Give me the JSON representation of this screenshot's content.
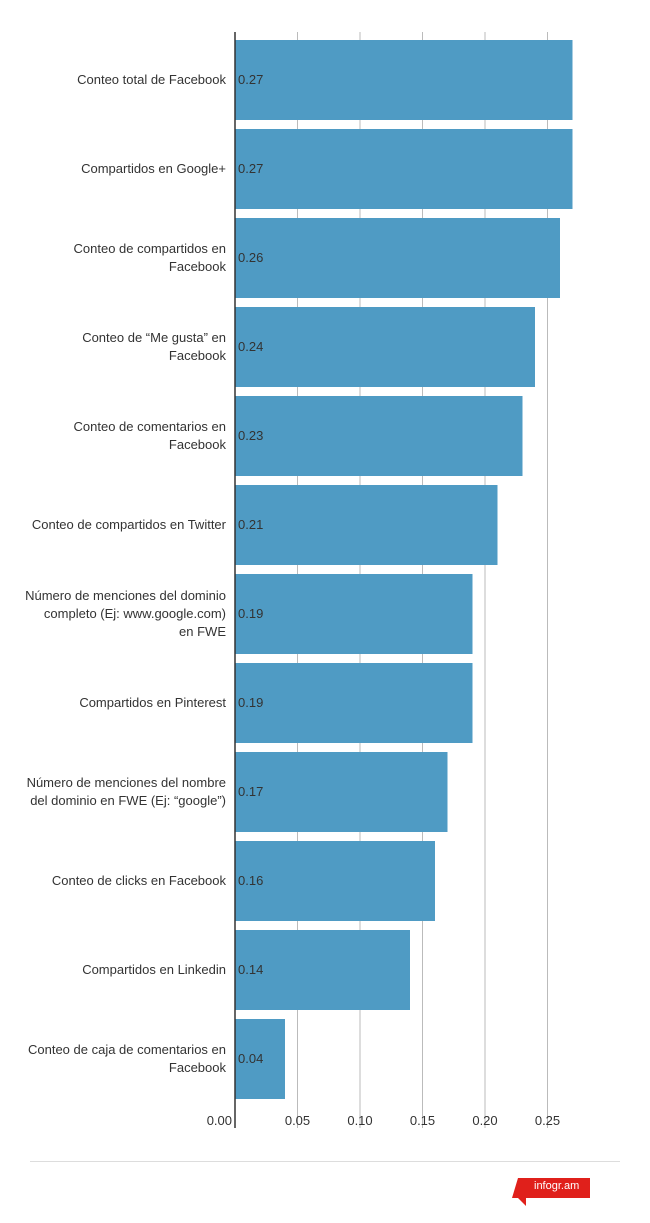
{
  "chart_data": {
    "type": "bar",
    "orientation": "horizontal",
    "categories": [
      "Conteo total de Facebook",
      "Compartidos en Google+",
      "Conteo de compartidos en Facebook",
      "Conteo de “Me gusta” en Facebook",
      "Conteo de comentarios en Facebook",
      "Conteo de compartidos en Twitter",
      "Número de menciones del dominio completo (Ej: www.google.com) en FWE",
      "Compartidos en Pinterest",
      "Número de menciones del nombre del dominio en FWE (Ej: “google”)",
      "Conteo de clicks en Facebook",
      "Compartidos en Linkedin",
      "Conteo de caja de comentarios en Facebook"
    ],
    "category_lines": [
      [
        "Conteo total de Facebook"
      ],
      [
        "Compartidos en Google+"
      ],
      [
        "Conteo de compartidos en",
        "Facebook"
      ],
      [
        "Conteo de “Me gusta” en",
        "Facebook"
      ],
      [
        "Conteo de comentarios en",
        "Facebook"
      ],
      [
        "Conteo de compartidos en Twitter"
      ],
      [
        "Número de menciones del dominio",
        "completo (Ej: www.google.com)",
        "en FWE"
      ],
      [
        "Compartidos en Pinterest"
      ],
      [
        "Número de menciones del nombre",
        "del dominio en FWE (Ej: “google”)"
      ],
      [
        "Conteo de clicks en Facebook"
      ],
      [
        "Compartidos en Linkedin"
      ],
      [
        "Conteo de caja de comentarios en",
        "Facebook"
      ]
    ],
    "values": [
      0.27,
      0.27,
      0.26,
      0.24,
      0.23,
      0.21,
      0.19,
      0.19,
      0.17,
      0.16,
      0.14,
      0.04
    ],
    "value_labels": [
      "0.27",
      "0.27",
      "0.26",
      "0.24",
      "0.23",
      "0.21",
      "0.19",
      "0.19",
      "0.17",
      "0.16",
      "0.14",
      "0.04"
    ],
    "x_ticks": [
      0,
      0.05,
      0.1,
      0.15,
      0.2,
      0.25
    ],
    "x_tick_labels": [
      "0.00",
      "0.05",
      "0.10",
      "0.15",
      "0.20",
      "0.25"
    ],
    "xlim": [
      0,
      0.3
    ],
    "grid": true,
    "bar_color": "#4f9bc4",
    "grid_color": "#bbbbbb",
    "axis_color": "#333333"
  },
  "footer": {
    "brand": "infogr.am",
    "brand_color": "#e0201b"
  }
}
